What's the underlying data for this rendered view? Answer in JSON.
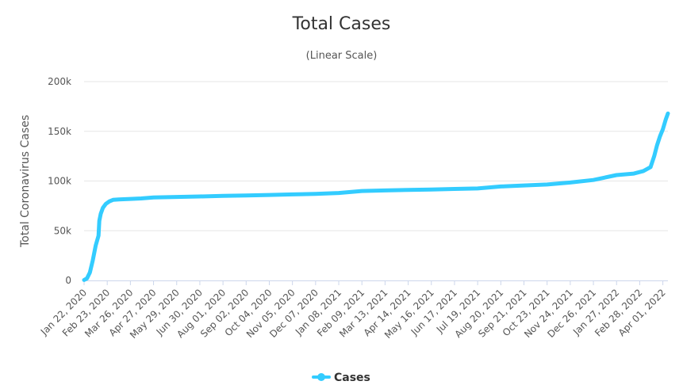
{
  "chart_data": {
    "type": "line",
    "title": "Total Cases",
    "subtitle": "(Linear Scale)",
    "ylabel": "Total Coronavirus Cases",
    "xlabel": "",
    "ylim": [
      0,
      200000
    ],
    "y_ticks": [
      {
        "value": 0,
        "label": "0"
      },
      {
        "value": 50000,
        "label": "50k"
      },
      {
        "value": 100000,
        "label": "100k"
      },
      {
        "value": 150000,
        "label": "150k"
      },
      {
        "value": 200000,
        "label": "200k"
      }
    ],
    "x_ticks": [
      "Jan 22, 2020",
      "Feb 23, 2020",
      "Mar 26, 2020",
      "Apr 27, 2020",
      "May 29, 2020",
      "Jun 30, 2020",
      "Aug 01, 2020",
      "Sep 02, 2020",
      "Oct 04, 2020",
      "Nov 05, 2020",
      "Dec 07, 2020",
      "Jan 08, 2021",
      "Feb 09, 2021",
      "Mar 13, 2021",
      "Apr 14, 2021",
      "May 16, 2021",
      "Jun 17, 2021",
      "Jul 19, 2021",
      "Aug 20, 2021",
      "Sep 21, 2021",
      "Oct 23, 2021",
      "Nov 24, 2021",
      "Dec 26, 2021",
      "Jan 27, 2022",
      "Feb 28, 2022",
      "Apr 01, 2022"
    ],
    "grid": true,
    "legend_position": "bottom-center",
    "series": [
      {
        "name": "Cases",
        "color": "#33ccff",
        "points": [
          [
            "2020-01-22",
            500
          ],
          [
            "2020-01-26",
            2000
          ],
          [
            "2020-01-30",
            8000
          ],
          [
            "2020-02-03",
            20000
          ],
          [
            "2020-02-07",
            35000
          ],
          [
            "2020-02-11",
            45000
          ],
          [
            "2020-02-12",
            60000
          ],
          [
            "2020-02-14",
            67000
          ],
          [
            "2020-02-17",
            73000
          ],
          [
            "2020-02-21",
            77000
          ],
          [
            "2020-02-26",
            79500
          ],
          [
            "2020-03-02",
            81000
          ],
          [
            "2020-03-10",
            81500
          ],
          [
            "2020-03-26",
            82000
          ],
          [
            "2020-04-10",
            82500
          ],
          [
            "2020-04-27",
            83500
          ],
          [
            "2020-05-29",
            84000
          ],
          [
            "2020-06-30",
            84500
          ],
          [
            "2020-08-01",
            85000
          ],
          [
            "2020-09-02",
            85500
          ],
          [
            "2020-10-04",
            86000
          ],
          [
            "2020-11-05",
            86500
          ],
          [
            "2020-12-07",
            87000
          ],
          [
            "2021-01-08",
            88000
          ],
          [
            "2021-02-09",
            90000
          ],
          [
            "2021-03-13",
            90500
          ],
          [
            "2021-04-14",
            91000
          ],
          [
            "2021-05-16",
            91500
          ],
          [
            "2021-06-17",
            92000
          ],
          [
            "2021-07-19",
            92500
          ],
          [
            "2021-08-20",
            94500
          ],
          [
            "2021-09-21",
            95500
          ],
          [
            "2021-10-23",
            96500
          ],
          [
            "2021-11-24",
            98500
          ],
          [
            "2021-12-26",
            101000
          ],
          [
            "2022-01-27",
            106000
          ],
          [
            "2022-02-20",
            107500
          ],
          [
            "2022-03-05",
            110000
          ],
          [
            "2022-03-15",
            114000
          ],
          [
            "2022-03-20",
            125000
          ],
          [
            "2022-03-24",
            136000
          ],
          [
            "2022-03-28",
            145000
          ],
          [
            "2022-04-01",
            152000
          ],
          [
            "2022-04-05",
            162000
          ],
          [
            "2022-04-08",
            168000
          ]
        ]
      }
    ]
  }
}
